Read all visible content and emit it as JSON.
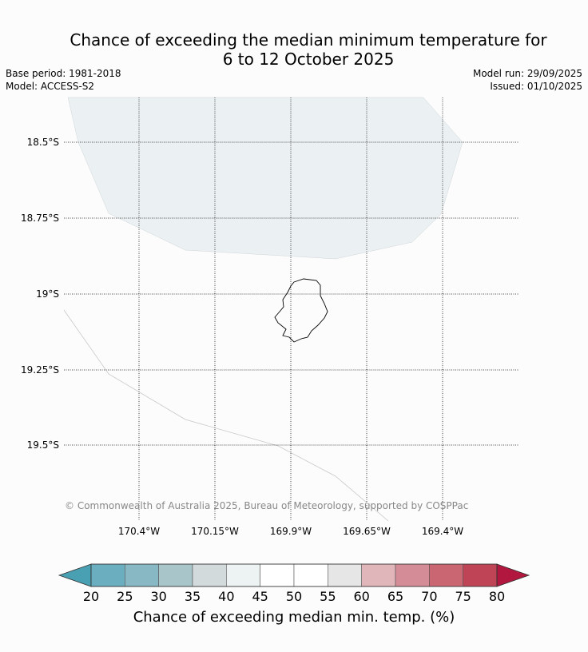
{
  "title_line1": "Chance of exceeding the median minimum temperature for",
  "title_line2": "6 to 12 October 2025",
  "base_period": "Base period: 1981-2018",
  "model": "Model: ACCESS-S2",
  "model_run": "Model run: 29/09/2025",
  "issued": "Issued: 01/10/2025",
  "copyright": "© Commonwealth of Australia 2025, Bureau of Meteorology, supported by COSPPac",
  "map": {
    "lat_labels": [
      "18.5°S",
      "18.75°S",
      "19°S",
      "19.25°S",
      "19.5°S"
    ],
    "lon_labels": [
      "170.4°W",
      "170.15°W",
      "169.9°W",
      "169.65°W",
      "169.4°W"
    ],
    "shaded_region_color": "#ebf0f2"
  },
  "colorbar": {
    "title": "Chance of exceeding median min. temp. (%)",
    "ticks": [
      "20",
      "25",
      "30",
      "35",
      "40",
      "45",
      "50",
      "55",
      "60",
      "65",
      "70",
      "75",
      "80"
    ],
    "under_color": "#4aa0b3",
    "over_color": "#b2183f",
    "colors": [
      "#6aaec0",
      "#88b8c4",
      "#a8c5c9",
      "#d2dadb",
      "#edf2f3",
      "#ffffff",
      "#ffffff",
      "#e6e6e6",
      "#e0b6ba",
      "#d48c96",
      "#c96672",
      "#bf4556"
    ]
  }
}
